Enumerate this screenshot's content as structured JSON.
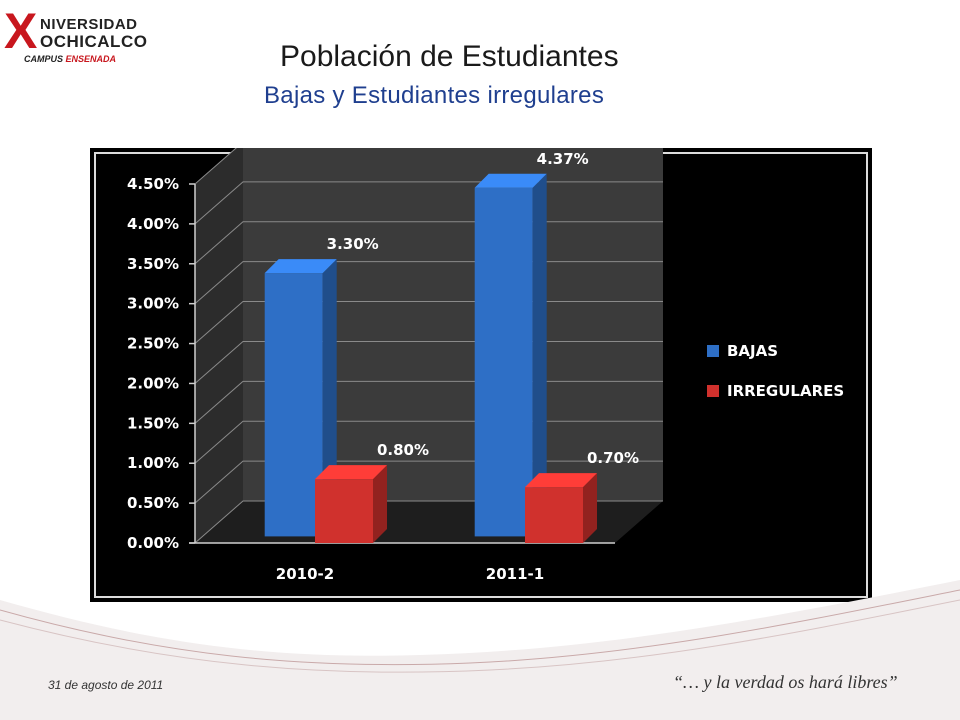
{
  "logo": {
    "mark": "X",
    "line1": "NIVERSIDAD",
    "line2": "OCHICALCO",
    "campus_prefix": "CAMPUS",
    "campus_city": "ENSENADA"
  },
  "title": "Población de Estudiantes",
  "subtitle": "Bajas y Estudiantes irregulares",
  "footer": {
    "date": "31 de  agosto de 2011",
    "motto": "“… y la verdad os hará libres”"
  },
  "colors": {
    "bajas": "#2e6fc6",
    "irregulares": "#d0312d",
    "chart_bg": "#000000",
    "plot_wall": "#3b3b3b",
    "accent_wave": "#b31b1b"
  },
  "chart_data": {
    "type": "bar",
    "categories": [
      "2010-2",
      "2011-1"
    ],
    "series": [
      {
        "name": "BAJAS",
        "values": [
          3.3,
          4.37
        ],
        "labels": [
          "3.30%",
          "4.37%"
        ]
      },
      {
        "name": "IRREGULARES",
        "values": [
          0.8,
          0.7
        ],
        "labels": [
          "0.80%",
          "0.70%"
        ]
      }
    ],
    "yticks": [
      "0.00%",
      "0.50%",
      "1.00%",
      "1.50%",
      "2.00%",
      "2.50%",
      "3.00%",
      "3.50%",
      "4.00%",
      "4.50%"
    ],
    "ylim": [
      0,
      4.5
    ],
    "grid": true,
    "legend": "right",
    "style": "3d-column"
  }
}
